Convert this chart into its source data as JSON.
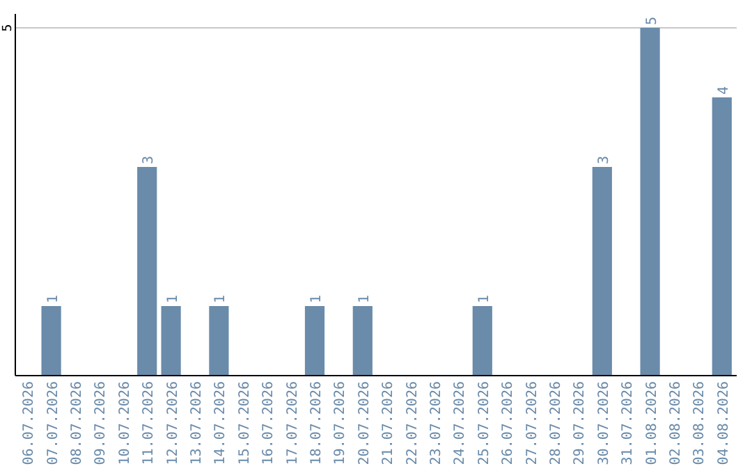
{
  "chart_data": {
    "type": "bar",
    "categories": [
      "06.07.2026",
      "07.07.2026",
      "08.07.2026",
      "09.07.2026",
      "10.07.2026",
      "11.07.2026",
      "12.07.2026",
      "13.07.2026",
      "14.07.2026",
      "15.07.2026",
      "16.07.2026",
      "17.07.2026",
      "18.07.2026",
      "19.07.2026",
      "20.07.2026",
      "21.07.2026",
      "22.07.2026",
      "23.07.2026",
      "24.07.2026",
      "25.07.2026",
      "26.07.2026",
      "27.07.2026",
      "28.07.2026",
      "29.07.2026",
      "30.07.2026",
      "31.07.2026",
      "01.08.2026",
      "02.08.2026",
      "03.08.2026",
      "04.08.2026"
    ],
    "values": [
      0,
      1,
      0,
      0,
      0,
      3,
      1,
      0,
      1,
      0,
      0,
      0,
      1,
      0,
      1,
      0,
      0,
      0,
      0,
      1,
      0,
      0,
      0,
      0,
      3,
      0,
      5,
      0,
      0,
      4
    ],
    "value_labels": [
      null,
      "1",
      null,
      null,
      null,
      "3",
      "1",
      null,
      "1",
      null,
      null,
      null,
      "1",
      null,
      "1",
      null,
      null,
      null,
      null,
      "1",
      null,
      null,
      null,
      null,
      "3",
      null,
      "5",
      null,
      null,
      "4"
    ],
    "color": "#6a8baa",
    "ylim": [
      0,
      5.2
    ],
    "yticks": [
      5
    ],
    "grid": "y"
  }
}
